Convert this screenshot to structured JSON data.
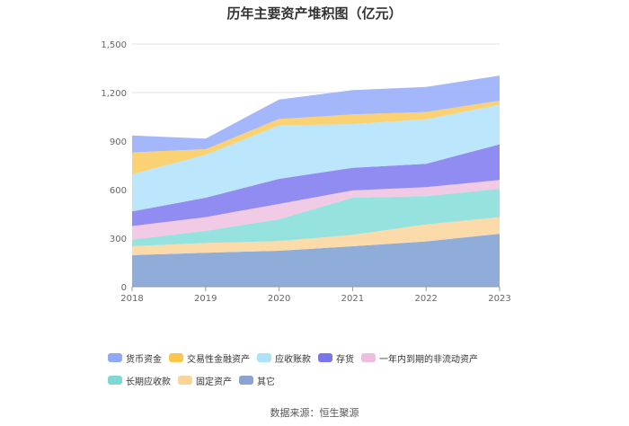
{
  "chart_data": {
    "type": "area",
    "stacked": true,
    "title": "历年主要资产堆积图（亿元）",
    "xlabel": "",
    "ylabel": "",
    "categories": [
      "2018",
      "2019",
      "2020",
      "2021",
      "2022",
      "2023"
    ],
    "ylim": [
      0,
      1500
    ],
    "yticks": [
      "0",
      "300",
      "600",
      "900",
      "1,200",
      "1,500"
    ],
    "grid": true,
    "legend_position": "bottom",
    "series": [
      {
        "name": "其它",
        "color": "#8aa9d8",
        "values": [
          195,
          210,
          222,
          250,
          280,
          327
        ]
      },
      {
        "name": "固定资产",
        "color": "#fbd9a5",
        "values": [
          55,
          60,
          60,
          70,
          105,
          103
        ]
      },
      {
        "name": "长期应收款",
        "color": "#8fe0dc",
        "values": [
          40,
          75,
          135,
          230,
          175,
          175
        ]
      },
      {
        "name": "一年内到期的非流动资产",
        "color": "#f0c7e4",
        "values": [
          85,
          85,
          95,
          45,
          55,
          55
        ]
      },
      {
        "name": "存货",
        "color": "#8b86f0",
        "values": [
          90,
          120,
          155,
          140,
          145,
          220
        ]
      },
      {
        "name": "应收账款",
        "color": "#b7e5fb",
        "values": [
          230,
          265,
          330,
          270,
          275,
          245
        ]
      },
      {
        "name": "交易性金融资产",
        "color": "#fbd06b",
        "values": [
          135,
          35,
          40,
          60,
          45,
          25
        ]
      },
      {
        "name": "货币资金",
        "color": "#9fb3fa",
        "values": [
          105,
          65,
          120,
          150,
          155,
          155
        ]
      }
    ]
  },
  "legend": [
    {
      "label": "货币资金",
      "color": "#8fa8f8"
    },
    {
      "label": "交易性金融资产",
      "color": "#fbc74c"
    },
    {
      "label": "应收账款",
      "color": "#aee2fa"
    },
    {
      "label": "存货",
      "color": "#7b75ec"
    },
    {
      "label": "一年内到期的非流动资产",
      "color": "#eebddf"
    },
    {
      "label": "长期应收款",
      "color": "#7fd8d4"
    },
    {
      "label": "固定资产",
      "color": "#fcd49a"
    },
    {
      "label": "其它",
      "color": "#8aa4d2"
    }
  ],
  "source": "数据来源：恒生聚源"
}
